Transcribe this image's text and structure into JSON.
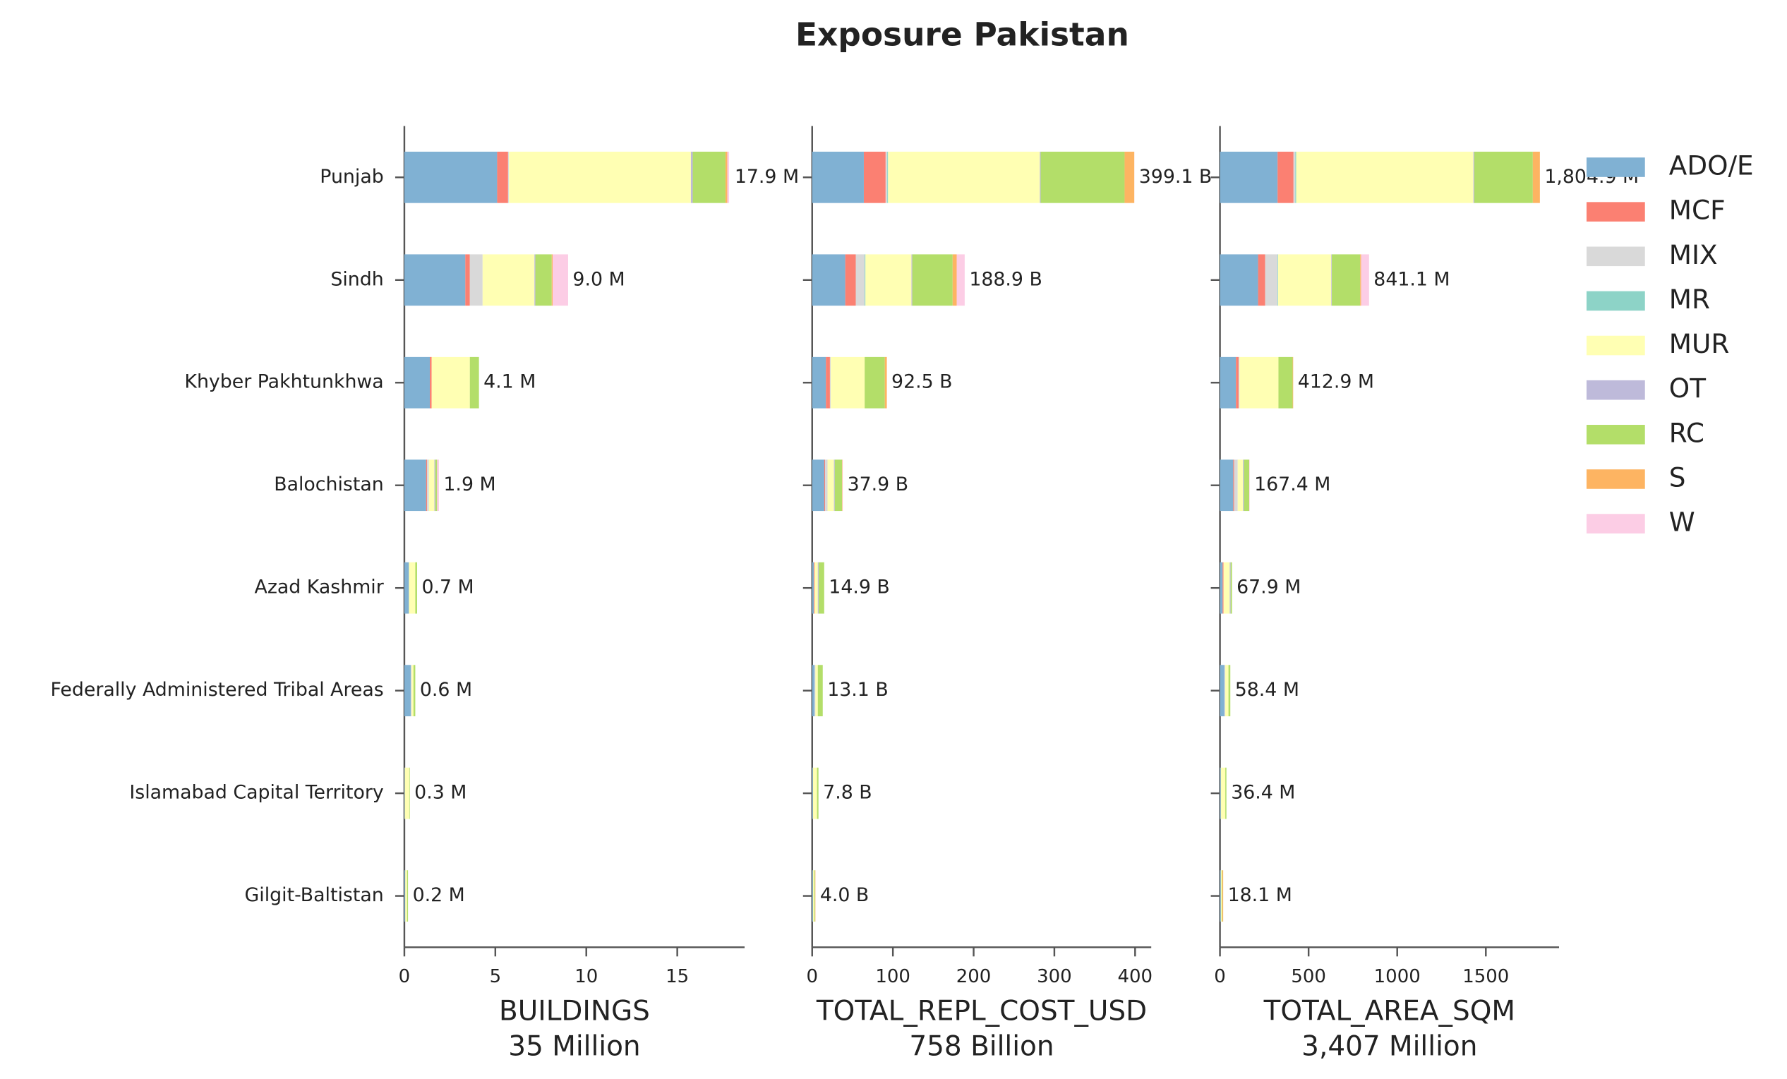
{
  "chart_data": {
    "type": "bar",
    "orientation": "horizontal",
    "stacked": true,
    "title": "Exposure Pakistan",
    "legend": "right",
    "categories": [
      "Punjab",
      "Sindh",
      "Khyber Pakhtunkhwa",
      "Balochistan",
      "Azad Kashmir",
      "Federally Administered Tribal Areas",
      "Islamabad Capital Territory",
      "Gilgit-Baltistan"
    ],
    "series": [
      {
        "name": "ADO/E",
        "color": "#80b1d3"
      },
      {
        "name": "MCF",
        "color": "#fb8072"
      },
      {
        "name": "MIX",
        "color": "#d9d9d9"
      },
      {
        "name": "MR",
        "color": "#8dd3c7"
      },
      {
        "name": "MUR",
        "color": "#ffffb3"
      },
      {
        "name": "OT",
        "color": "#bebada"
      },
      {
        "name": "RC",
        "color": "#b3de69"
      },
      {
        "name": "S",
        "color": "#fdb462"
      },
      {
        "name": "W",
        "color": "#fccde5"
      }
    ],
    "panels": [
      {
        "xlabel": "BUILDINGS",
        "subtitle": "35 Million",
        "xlim": [
          0,
          18.7
        ],
        "xticks": [
          0,
          5,
          10,
          15
        ],
        "values": [
          [
            5.1,
            3.35,
            1.4,
            1.2,
            0.25,
            0.35,
            0.02,
            0.05
          ],
          [
            0.6,
            0.25,
            0.1,
            0.05,
            0,
            0,
            0,
            0
          ],
          [
            0.05,
            0.7,
            0,
            0.1,
            0,
            0.05,
            0,
            0
          ],
          [
            0,
            0,
            0,
            0,
            0,
            0,
            0,
            0
          ],
          [
            10.0,
            2.85,
            2.1,
            0.3,
            0.35,
            0.1,
            0.25,
            0.1
          ],
          [
            0.1,
            0.05,
            0,
            0.05,
            0,
            0,
            0,
            0
          ],
          [
            1.8,
            0.9,
            0.5,
            0.1,
            0.1,
            0.1,
            0.03,
            0.05
          ],
          [
            0.1,
            0.05,
            0,
            0,
            0,
            0,
            0,
            0
          ],
          [
            0.1,
            0.85,
            0,
            0.1,
            0,
            0,
            0,
            0
          ]
        ],
        "totals": [
          17.9,
          9.0,
          4.1,
          1.9,
          0.7,
          0.6,
          0.3,
          0.2
        ],
        "total_labels": [
          "17.9 M",
          "9.0 M",
          "4.1 M",
          "1.9 M",
          "0.7 M",
          "0.6 M",
          "0.3 M",
          "0.2 M"
        ]
      },
      {
        "xlabel": "TOTAL_REPL_COST_USD",
        "subtitle": "758 Billion",
        "xlim": [
          0,
          420
        ],
        "xticks": [
          0,
          100,
          200,
          300,
          400
        ],
        "values": [
          [
            64,
            41,
            17,
            15,
            2,
            3,
            1,
            1
          ],
          [
            27,
            13,
            5,
            1,
            1,
            0,
            0,
            0
          ],
          [
            2,
            11,
            1,
            3,
            0,
            1,
            0,
            0
          ],
          [
            1,
            1,
            0,
            0,
            0,
            0,
            0,
            0
          ],
          [
            188,
            57,
            42,
            8,
            4,
            3,
            5,
            1.5
          ],
          [
            1,
            1,
            0,
            1,
            1,
            0,
            0,
            0
          ],
          [
            104,
            50,
            25,
            9,
            6.9,
            6.1,
            1.8,
            1
          ],
          [
            12,
            5,
            2.5,
            0.5,
            0,
            0,
            0,
            0.5
          ],
          [
            0.1,
            9.9,
            0,
            0.4,
            0,
            0,
            0,
            0
          ]
        ],
        "totals": [
          399.1,
          188.9,
          92.5,
          37.9,
          14.9,
          13.1,
          7.8,
          4.0
        ],
        "total_labels": [
          "399.1 B",
          "188.9 B",
          "92.5 B",
          "37.9 B",
          "14.9 B",
          "13.1 B",
          "7.8 B",
          "4.0 B"
        ]
      },
      {
        "xlabel": "TOTAL_AREA_SQM",
        "subtitle": "3,407 Million",
        "xlim": [
          0,
          1913
        ],
        "xticks": [
          0,
          500,
          1000,
          1500
        ],
        "values": [
          [
            325,
            215,
            90,
            75,
            15,
            25,
            5,
            5
          ],
          [
            90,
            40,
            15,
            5,
            5,
            0,
            0,
            0
          ],
          [
            10,
            70,
            5,
            20,
            0,
            5,
            0,
            0
          ],
          [
            5,
            3,
            0,
            0,
            0,
            0,
            0,
            0
          ],
          [
            1000,
            300,
            220,
            30,
            35,
            18,
            25,
            5
          ],
          [
            5,
            3,
            0,
            5,
            5,
            0,
            0,
            0
          ],
          [
            330,
            160,
            80,
            30,
            7.9,
            10.4,
            6.4,
            3
          ],
          [
            39.9,
            5,
            2.9,
            0,
            0,
            0,
            0,
            5.1
          ],
          [
            0,
            45.1,
            0,
            2.4,
            0,
            0,
            0,
            0
          ]
        ],
        "totals": [
          1804.9,
          841.1,
          412.9,
          167.4,
          67.9,
          58.4,
          36.4,
          18.1
        ],
        "total_labels": [
          "1,804.9 M",
          "841.1 M",
          "412.9 M",
          "167.4 M",
          "67.9 M",
          "58.4 M",
          "36.4 M",
          "18.1 M"
        ]
      }
    ]
  }
}
